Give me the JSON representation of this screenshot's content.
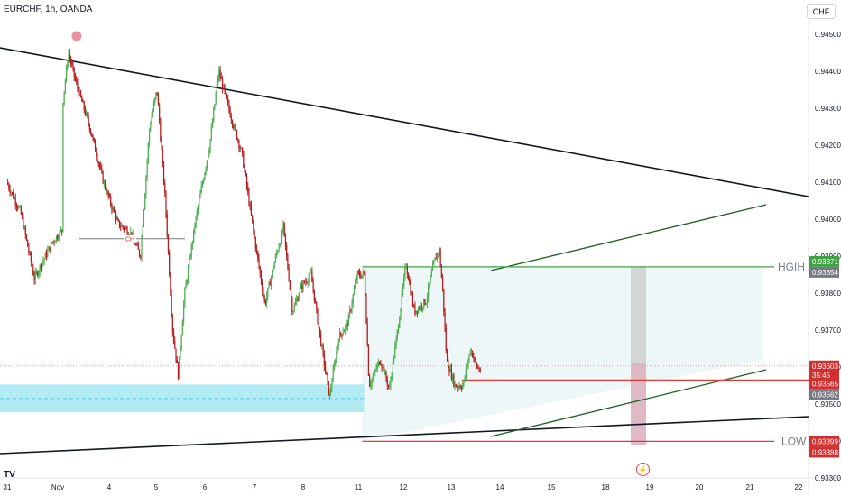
{
  "header": {
    "symbol_label": "EURCHF, 1h, OANDA",
    "currency": "CHF"
  },
  "colors": {
    "up": "#26a69a",
    "upCandle": "#4caf50",
    "down": "#b71c1c",
    "trendline": "#131722",
    "channel": "#1b5e20",
    "channel_fill": "#eef7f7",
    "support_zone": "#b2ebf2",
    "hgih_line": "#43a047",
    "low_line": "#e53935",
    "range_gray": "#c8c8c8",
    "range_pink": "#d8a7b8",
    "dot": "#e9919e",
    "price_tag_red": "#d32f2f",
    "price_tag_gray": "#787b86",
    "price_tag_green": "#43a047"
  },
  "chart_data": {
    "type": "candlestick",
    "title": "EURCHF, 1h, OANDA",
    "y_axis": {
      "ticks": [
        "0.94500",
        "0.94400",
        "0.94300",
        "0.94200",
        "0.94100",
        "0.94000",
        "0.93900",
        "0.93800",
        "0.93700",
        "0.93600",
        "0.93500",
        "0.93400",
        "0.93300"
      ],
      "range": [
        0.9325,
        0.9461
      ]
    },
    "x_axis": {
      "ticks": [
        "31",
        "Nov",
        "4",
        "5",
        "6",
        "7",
        "8",
        "11",
        "12",
        "13",
        "14",
        "15",
        "18",
        "19",
        "20",
        "21",
        "22"
      ]
    },
    "price_path": [
      {
        "t": 0,
        "p": 0.941
      },
      {
        "t": 1.5,
        "p": 0.9402
      },
      {
        "t": 3,
        "p": 0.9384
      },
      {
        "t": 5,
        "p": 0.9394
      },
      {
        "t": 6,
        "p": 0.9397
      },
      {
        "t": 6.01,
        "p": 0.943
      },
      {
        "t": 6.7,
        "p": 0.9445
      },
      {
        "t": 7.5,
        "p": 0.9437
      },
      {
        "t": 9,
        "p": 0.9425
      },
      {
        "t": 10.5,
        "p": 0.941
      },
      {
        "t": 12,
        "p": 0.9399
      },
      {
        "t": 13.5,
        "p": 0.9396
      },
      {
        "t": 14.5,
        "p": 0.939
      },
      {
        "t": 15.5,
        "p": 0.9425
      },
      {
        "t": 16.3,
        "p": 0.9435
      },
      {
        "t": 17.2,
        "p": 0.9405
      },
      {
        "t": 18,
        "p": 0.937
      },
      {
        "t": 18.6,
        "p": 0.9358
      },
      {
        "t": 19.3,
        "p": 0.938
      },
      {
        "t": 20.5,
        "p": 0.94
      },
      {
        "t": 22,
        "p": 0.942
      },
      {
        "t": 23,
        "p": 0.944
      },
      {
        "t": 24.3,
        "p": 0.9428
      },
      {
        "t": 25.5,
        "p": 0.9418
      },
      {
        "t": 26.8,
        "p": 0.9396
      },
      {
        "t": 28,
        "p": 0.9377
      },
      {
        "t": 29,
        "p": 0.9388
      },
      {
        "t": 30,
        "p": 0.9398
      },
      {
        "t": 31,
        "p": 0.9375
      },
      {
        "t": 32,
        "p": 0.9382
      },
      {
        "t": 33,
        "p": 0.9385
      },
      {
        "t": 34,
        "p": 0.9368
      },
      {
        "t": 35,
        "p": 0.9352
      },
      {
        "t": 36,
        "p": 0.9368
      },
      {
        "t": 37,
        "p": 0.9372
      },
      {
        "t": 38,
        "p": 0.9385
      },
      {
        "t": 38.8,
        "p": 0.9385
      },
      {
        "t": 39.3,
        "p": 0.9355
      },
      {
        "t": 40.5,
        "p": 0.9362
      },
      {
        "t": 41.5,
        "p": 0.9354
      },
      {
        "t": 42.5,
        "p": 0.9372
      },
      {
        "t": 43.3,
        "p": 0.9388
      },
      {
        "t": 44.2,
        "p": 0.9375
      },
      {
        "t": 45.5,
        "p": 0.9378
      },
      {
        "t": 46.3,
        "p": 0.9388
      },
      {
        "t": 46.9,
        "p": 0.9392
      },
      {
        "t": 47.3,
        "p": 0.938
      },
      {
        "t": 47.7,
        "p": 0.9362
      },
      {
        "t": 48.6,
        "p": 0.9355
      },
      {
        "t": 49.5,
        "p": 0.9355
      },
      {
        "t": 50.3,
        "p": 0.9365
      },
      {
        "t": 51,
        "p": 0.936
      },
      {
        "t": 51.4,
        "p": 0.9359
      }
    ],
    "annotations": [
      {
        "text": "CH",
        "price": 0.93947
      },
      {
        "text": "HGIH",
        "price": 0.93871
      },
      {
        "text": "LOW",
        "price": 0.93399
      }
    ],
    "price_labels": [
      {
        "text": "0.93871",
        "style": "green"
      },
      {
        "text": "0.93854",
        "style": "gray"
      },
      {
        "text": "0.93603",
        "style": "red"
      },
      {
        "text": "35:45",
        "style": "red"
      },
      {
        "text": "0.93565",
        "style": "red"
      },
      {
        "text": "0.93562",
        "style": "gray"
      },
      {
        "text": "0.93399",
        "style": "red"
      },
      {
        "text": "0.93388",
        "style": "red"
      }
    ]
  }
}
